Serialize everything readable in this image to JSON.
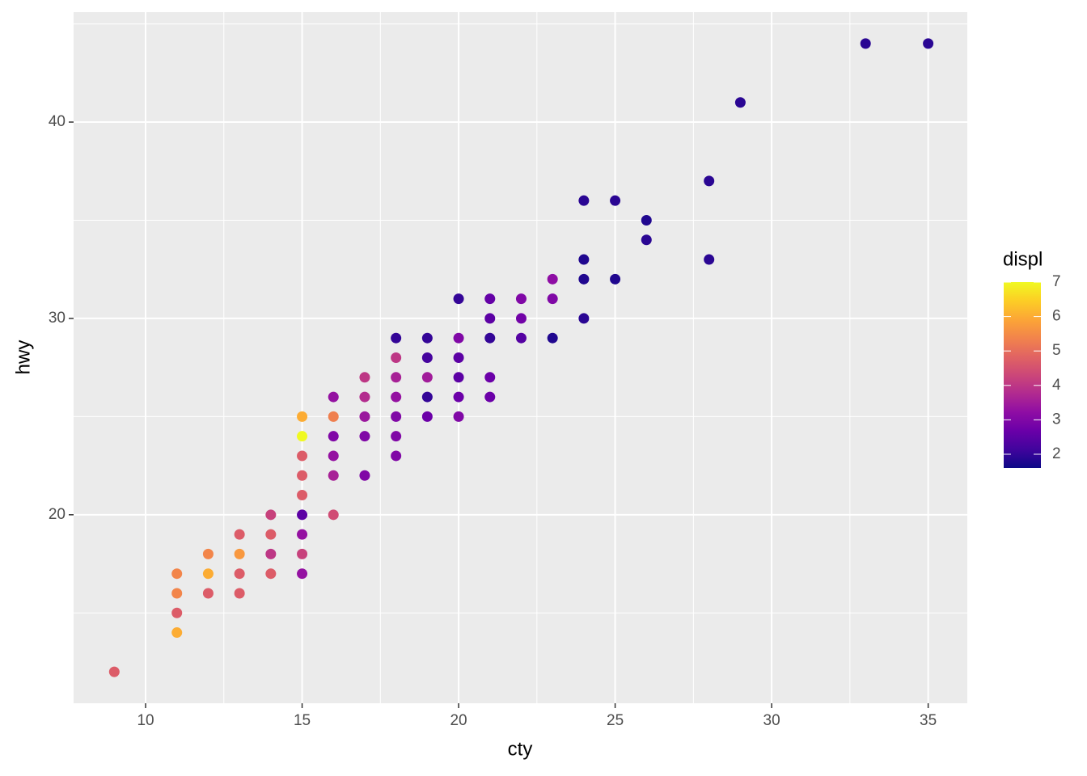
{
  "chart_data": {
    "type": "scatter",
    "x_label": "cty",
    "y_label": "hwy",
    "legend_title": "displ",
    "xlim": [
      7.7,
      36.25
    ],
    "ylim": [
      10.4,
      45.6
    ],
    "xticks": [
      10,
      15,
      20,
      25,
      30,
      35
    ],
    "yticks": [
      20,
      30,
      40
    ],
    "x_minor_ticks": [
      12.5,
      17.5,
      22.5,
      27.5,
      32.5
    ],
    "y_minor_ticks": [
      15,
      25,
      35,
      45
    ],
    "grid": true,
    "clim": [
      1.6,
      7.0
    ],
    "colorbar_ticks": [
      2,
      3,
      4,
      5,
      6,
      7
    ],
    "colorscale": [
      "#0d0887",
      "#41049d",
      "#6a00a8",
      "#8f0da4",
      "#b12a90",
      "#cc4778",
      "#e16462",
      "#f2844b",
      "#fca636",
      "#fcce25",
      "#f0f921"
    ],
    "x": [
      9,
      11,
      11,
      11,
      11,
      12,
      12,
      12,
      13,
      13,
      13,
      13,
      14,
      14,
      14,
      14,
      15,
      15,
      15,
      15,
      15,
      15,
      15,
      15,
      15,
      16,
      16,
      16,
      16,
      16,
      16,
      17,
      17,
      17,
      17,
      17,
      18,
      18,
      18,
      18,
      18,
      18,
      18,
      19,
      19,
      19,
      19,
      19,
      20,
      20,
      20,
      20,
      20,
      20,
      21,
      21,
      21,
      21,
      21,
      22,
      22,
      22,
      23,
      23,
      23,
      24,
      24,
      24,
      24,
      25,
      25,
      26,
      26,
      28,
      28,
      29,
      33,
      35
    ],
    "y": [
      12,
      14,
      15,
      16,
      17,
      16,
      17,
      18,
      16,
      17,
      18,
      19,
      17,
      18,
      19,
      20,
      17,
      18,
      19,
      20,
      21,
      22,
      23,
      24,
      25,
      20,
      22,
      23,
      24,
      25,
      26,
      22,
      24,
      25,
      26,
      27,
      23,
      24,
      25,
      26,
      27,
      28,
      29,
      25,
      26,
      27,
      28,
      29,
      25,
      26,
      27,
      28,
      29,
      31,
      26,
      27,
      29,
      30,
      31,
      29,
      30,
      31,
      29,
      31,
      32,
      30,
      32,
      33,
      36,
      32,
      36,
      34,
      35,
      33,
      37,
      41,
      44,
      44
    ],
    "color_values": [
      4.7,
      6.0,
      4.7,
      5.4,
      5.4,
      4.7,
      6.0,
      5.4,
      4.7,
      4.7,
      5.7,
      4.7,
      4.7,
      4.0,
      4.7,
      4.2,
      3.3,
      4.2,
      3.3,
      2.5,
      4.7,
      4.7,
      4.7,
      7.0,
      6.0,
      4.4,
      3.6,
      3.3,
      3.0,
      5.3,
      3.3,
      3.0,
      3.0,
      3.4,
      3.8,
      4.0,
      3.0,
      3.0,
      3.0,
      3.3,
      3.6,
      4.0,
      2.0,
      2.7,
      2.0,
      3.5,
      2.2,
      2.0,
      3.0,
      2.7,
      2.5,
      2.5,
      3.0,
      2.0,
      2.7,
      2.7,
      2.0,
      2.5,
      2.6,
      2.4,
      2.8,
      3.0,
      1.8,
      3.0,
      3.2,
      1.9,
      1.8,
      1.8,
      1.9,
      1.8,
      1.9,
      1.9,
      1.8,
      1.9,
      1.9,
      1.9,
      1.9,
      1.9
    ]
  }
}
